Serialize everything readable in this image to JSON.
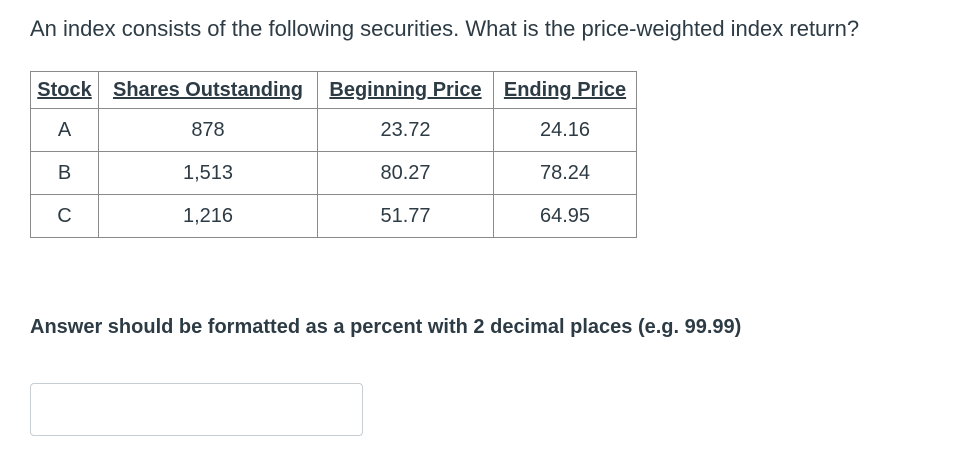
{
  "question": {
    "text": "An index consists of the following securities.  What is the price-weighted index return?"
  },
  "table": {
    "headers": [
      "Stock",
      "Shares Outstanding",
      "Beginning Price",
      "Ending Price"
    ],
    "rows": [
      [
        "A",
        "878",
        "23.72",
        "24.16"
      ],
      [
        "B",
        "1,513",
        "80.27",
        "78.24"
      ],
      [
        "C",
        "1,216",
        "51.77",
        "64.95"
      ]
    ]
  },
  "answer": {
    "instructions": "Answer should be formatted as a percent with 2 decimal places (e.g. 99.99)",
    "value": "",
    "placeholder": ""
  }
}
